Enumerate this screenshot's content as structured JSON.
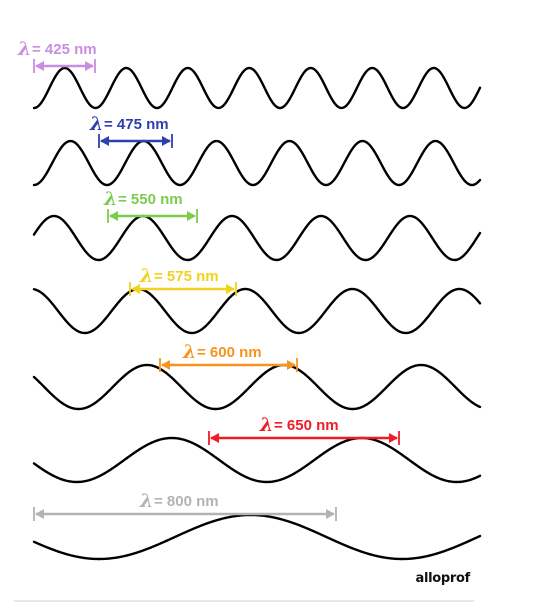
{
  "waves": [
    {
      "symbol": "λ",
      "value": "= 425 nm",
      "color": "#c98ee0"
    },
    {
      "symbol": "λ",
      "value": "= 475 nm",
      "color": "#2e3fae"
    },
    {
      "symbol": "λ",
      "value": "= 550 nm",
      "color": "#7dcc4f"
    },
    {
      "symbol": "λ",
      "value": "= 575 nm",
      "color": "#f2d21a"
    },
    {
      "symbol": "λ",
      "value": "= 600 nm",
      "color": "#f7941d"
    },
    {
      "symbol": "λ",
      "value": "= 650 nm",
      "color": "#ee1c24"
    },
    {
      "symbol": "λ",
      "value": "= 800 nm",
      "color": "#b3b3b3"
    }
  ],
  "logo": {
    "text": "alloprof"
  }
}
